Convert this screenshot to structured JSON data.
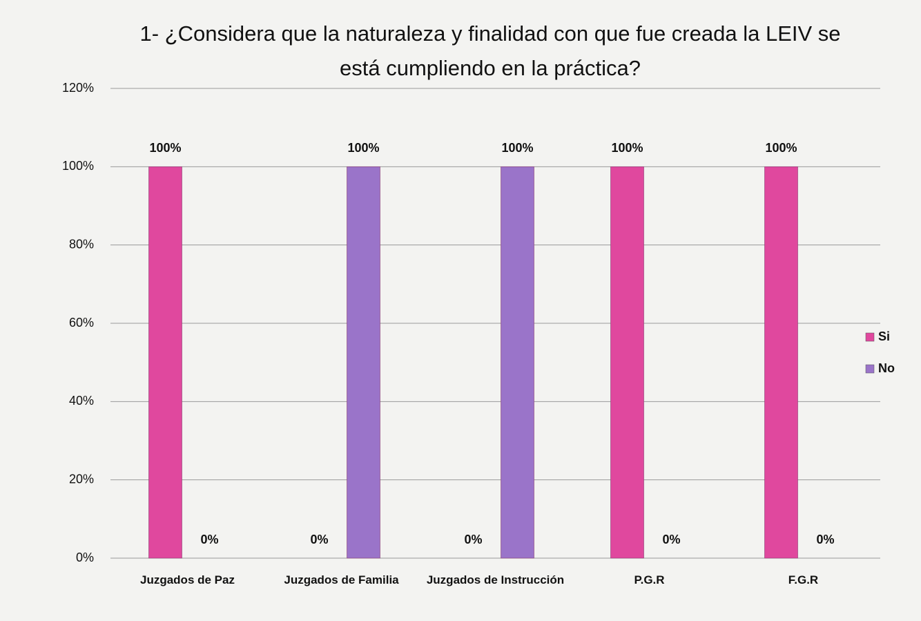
{
  "chart_data": {
    "type": "bar",
    "title": "1- ¿Considera que la naturaleza y finalidad con que fue creada la LEIV se está cumpliendo en la práctica?",
    "categories": [
      "Juzgados de Paz",
      "Juzgados de Familia",
      "Juzgados de Instrucción",
      "P.G.R",
      "F.G.R"
    ],
    "series": [
      {
        "name": "Si",
        "color": "#e0489e",
        "values": [
          100,
          0,
          0,
          100,
          100
        ],
        "value_labels": [
          "100%",
          "0%",
          "0%",
          "100%",
          "100%"
        ]
      },
      {
        "name": "No",
        "color": "#9a74c9",
        "values": [
          0,
          100,
          100,
          0,
          0
        ],
        "value_labels": [
          "0%",
          "100%",
          "100%",
          "0%",
          "0%"
        ]
      }
    ],
    "ylim": [
      0,
      120
    ],
    "yticks": [
      {
        "value": 0,
        "label": "0%"
      },
      {
        "value": 20,
        "label": "20%"
      },
      {
        "value": 40,
        "label": "40%"
      },
      {
        "value": 60,
        "label": "60%"
      },
      {
        "value": 80,
        "label": "80%"
      },
      {
        "value": 100,
        "label": "100%"
      },
      {
        "value": 120,
        "label": "120%"
      }
    ],
    "grid": true,
    "legend": "right"
  }
}
